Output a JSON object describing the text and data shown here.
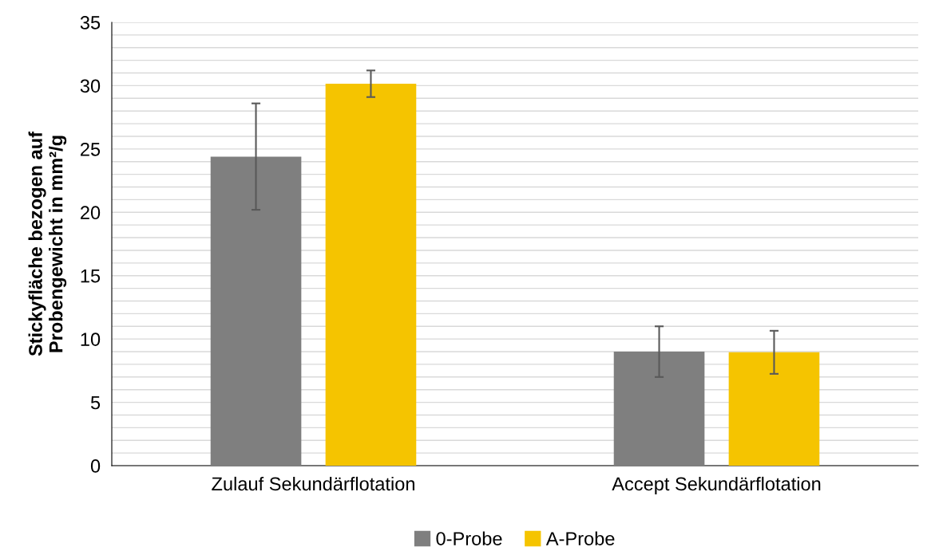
{
  "chart_data": {
    "type": "bar",
    "ylabel": "Stickyfläche bezogen auf\nProbengewicht in mm²/g",
    "categories": [
      "Zulauf Sekundärflotation",
      "Accept Sekundärflotation"
    ],
    "series": [
      {
        "name": "0-Probe",
        "color": "#7f7f7f",
        "values": [
          24.4,
          9.0
        ],
        "errors": [
          4.2,
          2.0
        ]
      },
      {
        "name": "A-Probe",
        "color": "#f5c400",
        "values": [
          30.15,
          8.95
        ],
        "errors": [
          1.05,
          1.7
        ]
      }
    ],
    "ylim": [
      0,
      35
    ],
    "yticks": [
      0,
      {
        "value": 1,
        "label": null
      },
      {
        "value": 2,
        "label": null
      },
      {
        "value": 3,
        "label": null
      },
      {
        "value": 4,
        "label": null
      },
      5,
      {
        "value": 6,
        "label": null
      },
      {
        "value": 7,
        "label": null
      },
      {
        "value": 8,
        "label": null
      },
      {
        "value": 9,
        "label": null
      },
      10,
      {
        "value": 11,
        "label": null
      },
      {
        "value": 12,
        "label": null
      },
      {
        "value": 13,
        "label": null
      },
      {
        "value": 14,
        "label": null
      },
      15,
      {
        "value": 16,
        "label": null
      },
      {
        "value": 17,
        "label": null
      },
      {
        "value": 18,
        "label": null
      },
      {
        "value": 19,
        "label": null
      },
      20,
      {
        "value": 21,
        "label": null
      },
      {
        "value": 22,
        "label": null
      },
      {
        "value": 23,
        "label": null
      },
      {
        "value": 24,
        "label": null
      },
      25,
      {
        "value": 26,
        "label": null
      },
      {
        "value": 27,
        "label": null
      },
      {
        "value": 28,
        "label": null
      },
      {
        "value": 29,
        "label": null
      },
      30,
      {
        "value": 31,
        "label": null
      },
      {
        "value": 32,
        "label": null
      },
      {
        "value": 33,
        "label": null
      },
      {
        "value": 34,
        "label": null
      },
      35
    ],
    "grid": "y",
    "legend": "bottom"
  }
}
